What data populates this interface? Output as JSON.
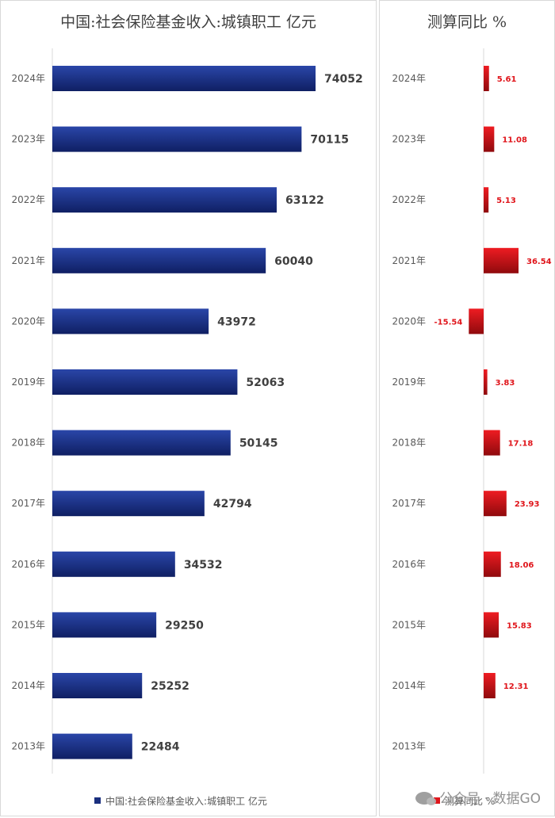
{
  "chart_data": [
    {
      "type": "bar",
      "orientation": "horizontal",
      "title": "中国:社会保险基金收入:城镇职工 亿元",
      "categories": [
        "2024年",
        "2023年",
        "2022年",
        "2021年",
        "2020年",
        "2019年",
        "2018年",
        "2017年",
        "2016年",
        "2015年",
        "2014年",
        "2013年"
      ],
      "series": [
        {
          "name": "中国:社会保险基金收入:城镇职工 亿元",
          "values": [
            74052,
            70115,
            63122,
            60040,
            43972,
            52063,
            50145,
            42794,
            34532,
            29250,
            25252,
            22484
          ]
        }
      ],
      "xlim": [
        0,
        100000
      ],
      "data_labels": true,
      "legend": "bottom",
      "color": "#1a2f7e"
    },
    {
      "type": "bar",
      "orientation": "horizontal",
      "title": "测算同比 %",
      "categories": [
        "2024年",
        "2023年",
        "2022年",
        "2021年",
        "2020年",
        "2019年",
        "2018年",
        "2017年",
        "2016年",
        "2015年",
        "2014年",
        "2013年"
      ],
      "series": [
        {
          "name": "测算同比 %",
          "values": [
            5.61,
            11.08,
            5.13,
            36.54,
            -15.54,
            3.83,
            17.18,
            23.93,
            18.06,
            15.83,
            12.31,
            null
          ]
        }
      ],
      "xlim": [
        -20,
        60
      ],
      "data_labels": true,
      "legend": "bottom",
      "color": "#e0151b"
    }
  ],
  "watermark": "公众号 · 数据GO"
}
